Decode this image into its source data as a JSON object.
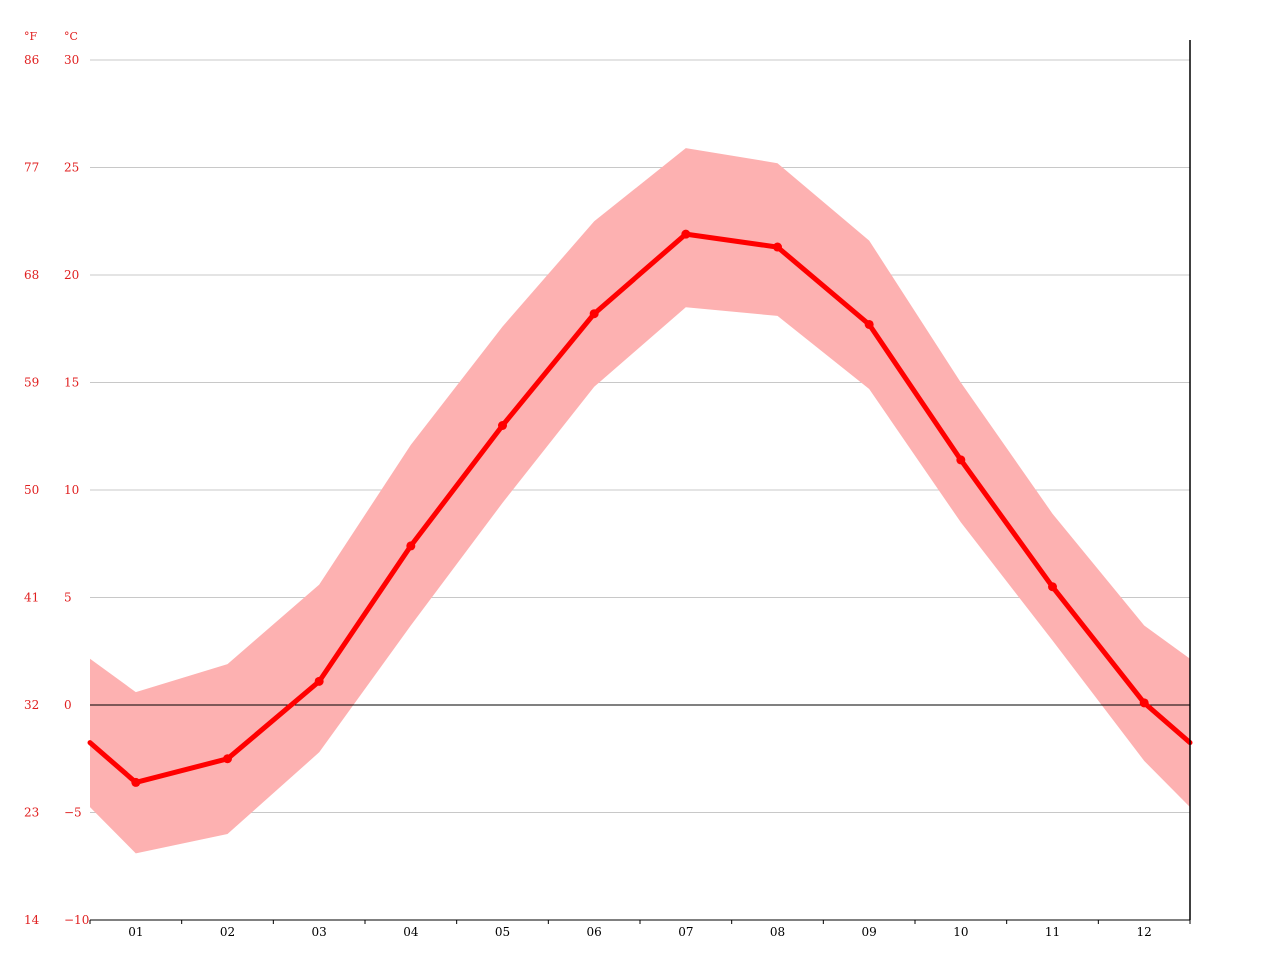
{
  "chart_data": {
    "type": "line",
    "title": "",
    "xlabel": "",
    "ylabel": "",
    "units": {
      "fahrenheit": "°F",
      "celsius": "°C"
    },
    "categories": [
      "01",
      "02",
      "03",
      "04",
      "05",
      "06",
      "07",
      "08",
      "09",
      "10",
      "11",
      "12"
    ],
    "ylim": [
      -10,
      30
    ],
    "y_ticks_celsius": [
      {
        "c": 30,
        "label": "30"
      },
      {
        "c": 25,
        "label": "25"
      },
      {
        "c": 20,
        "label": "20"
      },
      {
        "c": 15,
        "label": "15"
      },
      {
        "c": 10,
        "label": "10"
      },
      {
        "c": 5,
        "label": "5"
      },
      {
        "c": 0,
        "label": "0"
      },
      {
        "c": -5,
        "label": "−5"
      },
      {
        "c": -10,
        "label": "−10"
      }
    ],
    "y_ticks_fahrenheit": [
      {
        "c": 30,
        "label": "86"
      },
      {
        "c": 25,
        "label": "77"
      },
      {
        "c": 20,
        "label": "68"
      },
      {
        "c": 15,
        "label": "59"
      },
      {
        "c": 10,
        "label": "50"
      },
      {
        "c": 5,
        "label": "41"
      },
      {
        "c": 0,
        "label": "32"
      },
      {
        "c": -5,
        "label": "23"
      },
      {
        "c": -10,
        "label": "14"
      }
    ],
    "grid": true,
    "series": [
      {
        "role": "average",
        "values": [
          -3.6,
          -2.5,
          1.1,
          7.4,
          13.0,
          18.2,
          21.9,
          21.3,
          17.7,
          11.4,
          5.5,
          0.1
        ]
      },
      {
        "role": "maximum",
        "values": [
          0.6,
          1.9,
          5.6,
          12.1,
          17.6,
          22.5,
          25.9,
          25.2,
          21.6,
          15.0,
          8.9,
          3.7
        ]
      },
      {
        "role": "minimum",
        "values": [
          -6.9,
          -6.0,
          -2.2,
          3.7,
          9.4,
          14.8,
          18.5,
          18.1,
          14.7,
          8.5,
          3.0,
          -2.6
        ]
      }
    ],
    "colors": {
      "line": "#ff0000",
      "band": "#fdb1b1",
      "grid": "#c8c8c8",
      "zero_line": "#000000",
      "axis": "#000000",
      "y_labels": "#e02020",
      "x_labels": "#000000"
    }
  }
}
